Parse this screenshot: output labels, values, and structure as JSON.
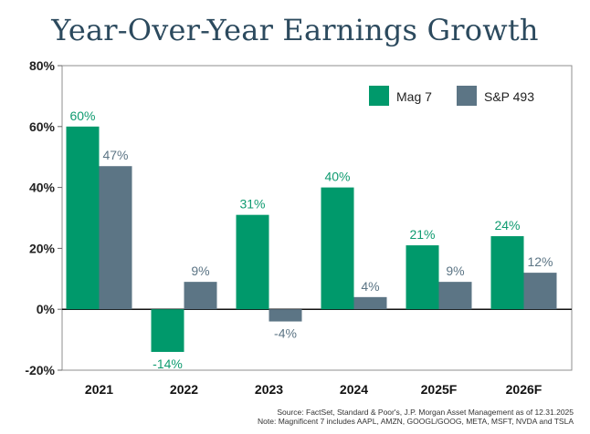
{
  "title": "Year-Over-Year Earnings Growth",
  "source_lines": [
    "Source: FactSet, Standard & Poor's, J.P. Morgan Asset Management as of 12.31.2025",
    "Note: Magnificent 7 includes AAPL, AMZN, GOOGL/GOOG, META, MSFT, NVDA and TSLA"
  ],
  "chart_data": {
    "type": "bar",
    "title": "Year-Over-Year Earnings Growth",
    "xlabel": "",
    "ylabel": "",
    "categories": [
      "2021",
      "2022",
      "2023",
      "2024",
      "2025F",
      "2026F"
    ],
    "series": [
      {
        "name": "Mag 7",
        "values": [
          60,
          -14,
          31,
          40,
          21,
          24
        ],
        "labels": [
          "60%",
          "-14%",
          "31%",
          "40%",
          "21%",
          "24%"
        ],
        "color": "#00996b",
        "label_color": "#0f9b70"
      },
      {
        "name": "S&P 493",
        "values": [
          47,
          9,
          -4,
          4,
          9,
          12
        ],
        "labels": [
          "47%",
          "9%",
          "-4%",
          "4%",
          "9%",
          "12%"
        ],
        "color": "#5c7585",
        "label_color": "#5c7585"
      }
    ],
    "ylim": [
      -20,
      80
    ],
    "yticks": [
      -20,
      0,
      20,
      40,
      60,
      80
    ],
    "ytick_labels": [
      "-20%",
      "0%",
      "20%",
      "40%",
      "60%",
      "80%"
    ],
    "legend_placement": "top-right",
    "grid": false
  }
}
